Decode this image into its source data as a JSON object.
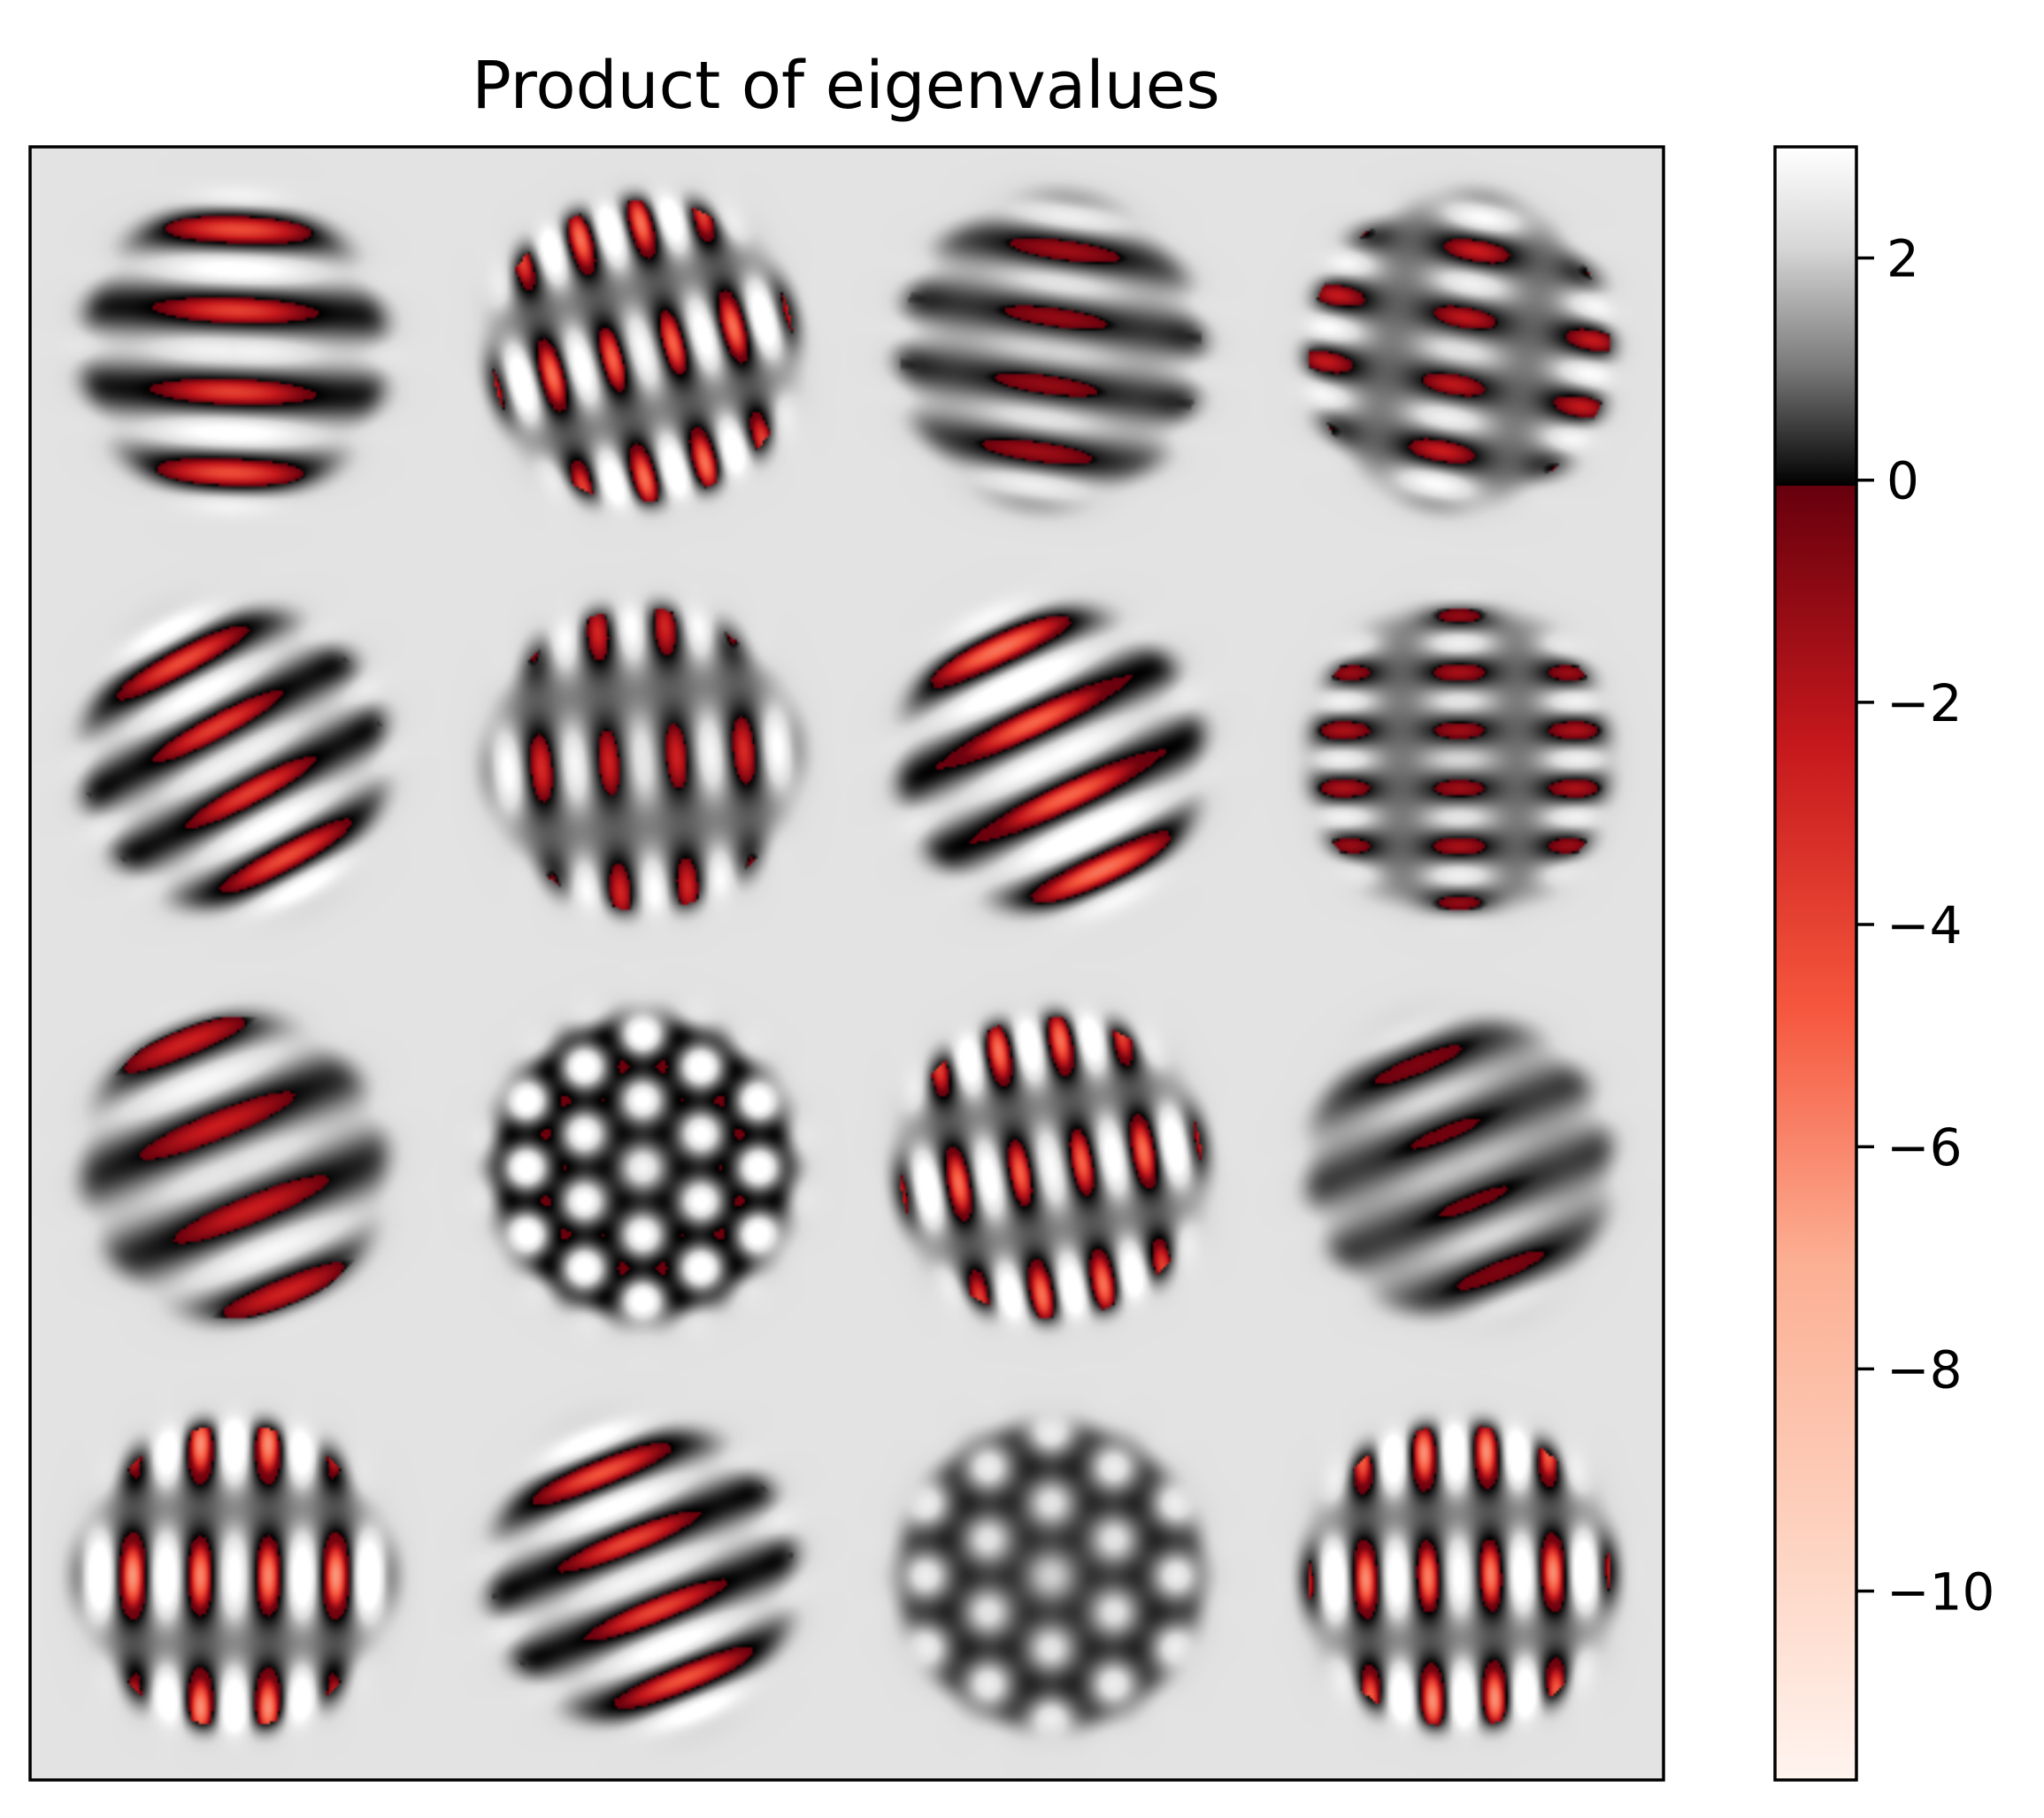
{
  "chart_data": {
    "type": "heatmap",
    "title": "Product of eigenvalues",
    "xlabel": "",
    "ylabel": "",
    "grid": false,
    "panel_background": "#e5e5e5",
    "layout": {
      "rows": 4,
      "cols": 4
    },
    "cells": [
      {
        "row": 0,
        "col": 0,
        "angle_deg": 2,
        "freq": 5.0,
        "pattern": "stripes",
        "red_strength": 0.75
      },
      {
        "row": 0,
        "col": 1,
        "angle_deg": 75,
        "freq": 6.5,
        "pattern": "lattice",
        "red_strength": 1.0
      },
      {
        "row": 0,
        "col": 2,
        "angle_deg": 8,
        "freq": 6.0,
        "pattern": "stripes",
        "red_strength": 0.25
      },
      {
        "row": 0,
        "col": 3,
        "angle_deg": 10,
        "freq": 6.0,
        "pattern": "lattice",
        "red_strength": 0.45
      },
      {
        "row": 1,
        "col": 0,
        "angle_deg": -28,
        "freq": 5.5,
        "pattern": "stripes",
        "red_strength": 0.75
      },
      {
        "row": 1,
        "col": 1,
        "angle_deg": 85,
        "freq": 6.0,
        "pattern": "lattice",
        "red_strength": 0.55
      },
      {
        "row": 1,
        "col": 2,
        "angle_deg": -25,
        "freq": 5.0,
        "pattern": "stripes",
        "red_strength": 1.0
      },
      {
        "row": 1,
        "col": 3,
        "angle_deg": 0,
        "freq": 7.0,
        "pattern": "lattice",
        "red_strength": 0.3
      },
      {
        "row": 2,
        "col": 0,
        "angle_deg": -22,
        "freq": 4.5,
        "pattern": "stripes",
        "red_strength": 0.5
      },
      {
        "row": 2,
        "col": 1,
        "angle_deg": 0,
        "freq": 7.0,
        "pattern": "hex",
        "red_strength": 0.85
      },
      {
        "row": 2,
        "col": 2,
        "angle_deg": 80,
        "freq": 6.5,
        "pattern": "lattice",
        "red_strength": 1.0
      },
      {
        "row": 2,
        "col": 3,
        "angle_deg": -22,
        "freq": 5.5,
        "pattern": "stripes",
        "red_strength": 0.1
      },
      {
        "row": 3,
        "col": 0,
        "angle_deg": 90,
        "freq": 6.0,
        "pattern": "lattice",
        "red_strength": 1.25
      },
      {
        "row": 3,
        "col": 1,
        "angle_deg": -22,
        "freq": 5.5,
        "pattern": "stripes",
        "red_strength": 0.8
      },
      {
        "row": 3,
        "col": 2,
        "angle_deg": 0,
        "freq": 6.5,
        "pattern": "hex",
        "red_strength": 0.25
      },
      {
        "row": 3,
        "col": 3,
        "angle_deg": 88,
        "freq": 6.5,
        "pattern": "lattice",
        "red_strength": 1.2
      }
    ],
    "colorbar": {
      "vmin": -11.7,
      "vmax": 3.0,
      "ticks": [
        2,
        0,
        -2,
        -4,
        -6,
        -8,
        -10
      ],
      "tick_labels": [
        "2",
        "0",
        "−2",
        "−4",
        "−6",
        "−8",
        "−10"
      ],
      "negative_colormap": "Reds",
      "positive_colormap": "gray",
      "colors": {
        "neg_deep": "#fff4ef",
        "neg_light": "#fcaf93",
        "neg_mid": "#f5553c",
        "neg_strong": "#c5181c",
        "neg_near_zero": "#67000d",
        "zero": "#000000",
        "pos_max": "#ffffff"
      }
    }
  }
}
